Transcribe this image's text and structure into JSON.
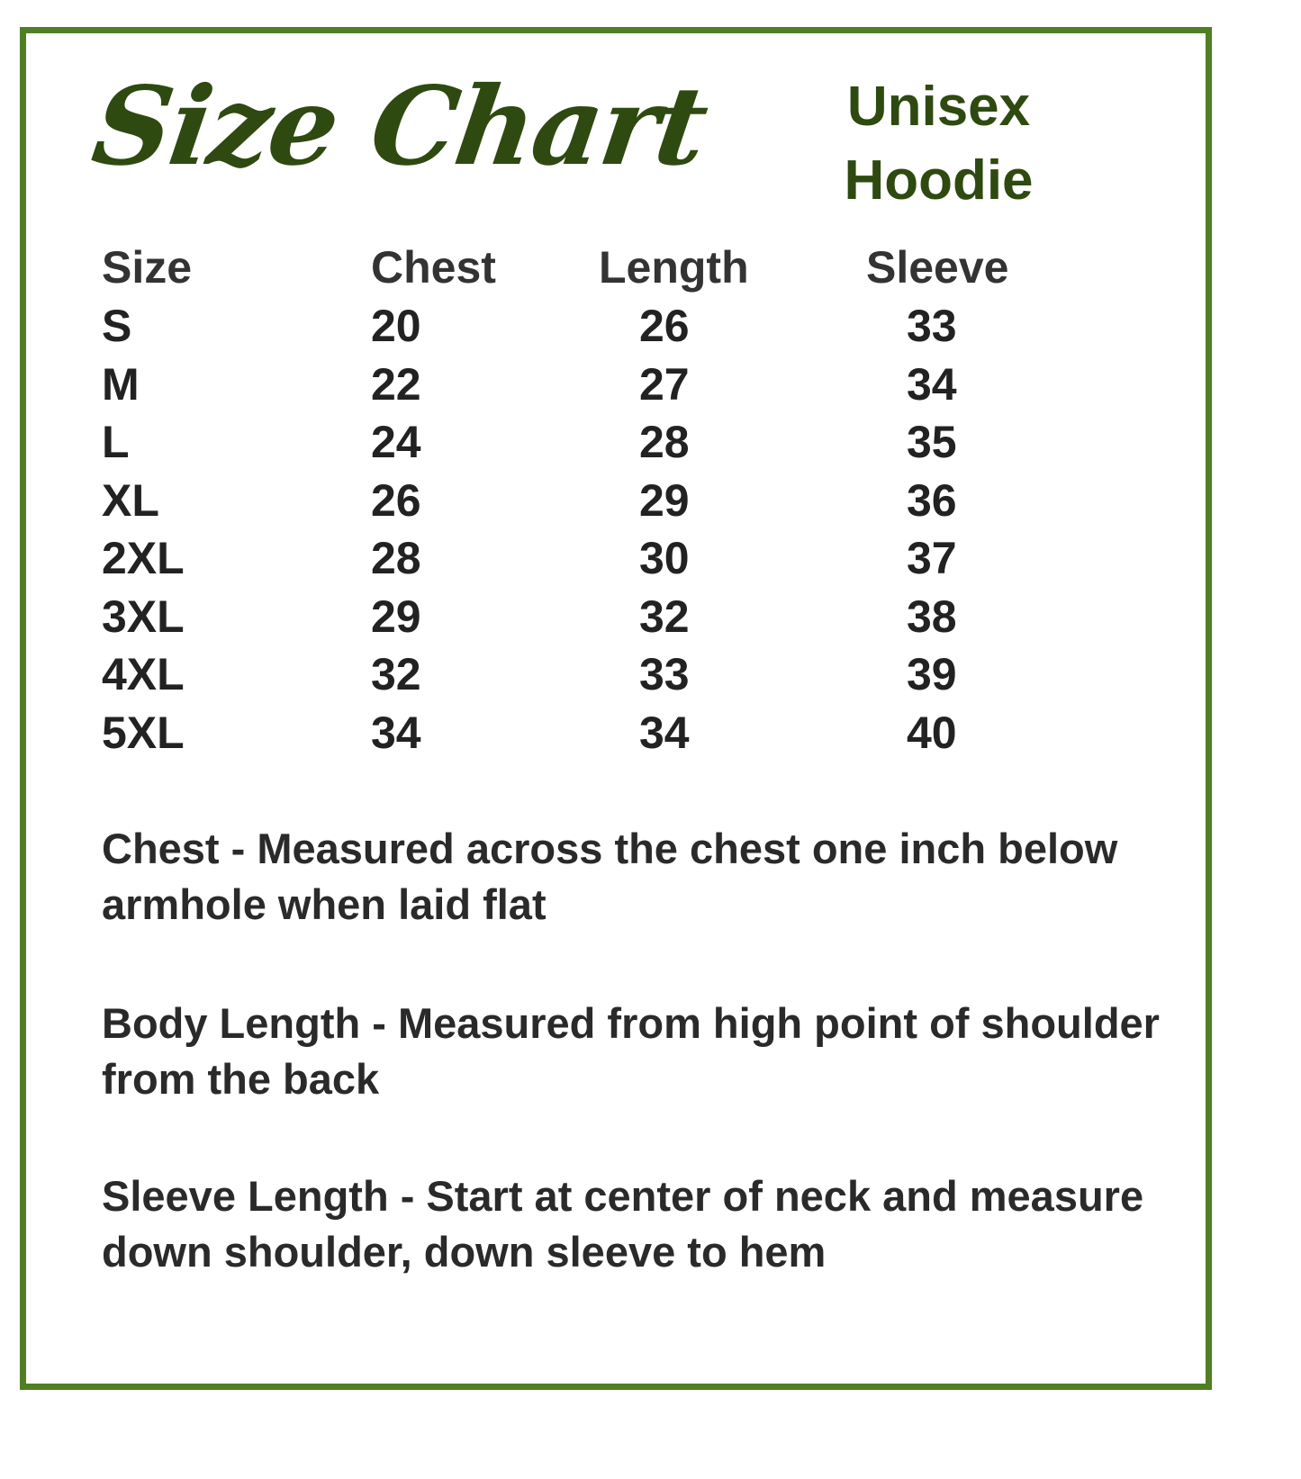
{
  "title": "Size Chart",
  "subtitle": [
    "Unisex",
    "Hoodie"
  ],
  "colors": {
    "border": "#4f7f23",
    "title": "#2e4a10"
  },
  "table": {
    "headers": [
      "Size",
      "Chest",
      "Length",
      "Sleeve"
    ],
    "rows": [
      [
        "S",
        "20",
        "26",
        "33"
      ],
      [
        "M",
        "22",
        "27",
        "34"
      ],
      [
        "L",
        "24",
        "28",
        "35"
      ],
      [
        "XL",
        "26",
        "29",
        "36"
      ],
      [
        "2XL",
        "28",
        "30",
        "37"
      ],
      [
        "3XL",
        "29",
        "32",
        "38"
      ],
      [
        "4XL",
        "32",
        "33",
        "39"
      ],
      [
        "5XL",
        "34",
        "34",
        "40"
      ]
    ]
  },
  "notes": [
    "Chest - Measured across the chest one inch below armhole when laid flat",
    "Body Length - Measured from high point of shoulder from the back",
    "Sleeve Length - Start at center of neck and measure down shoulder, down sleeve to hem"
  ]
}
